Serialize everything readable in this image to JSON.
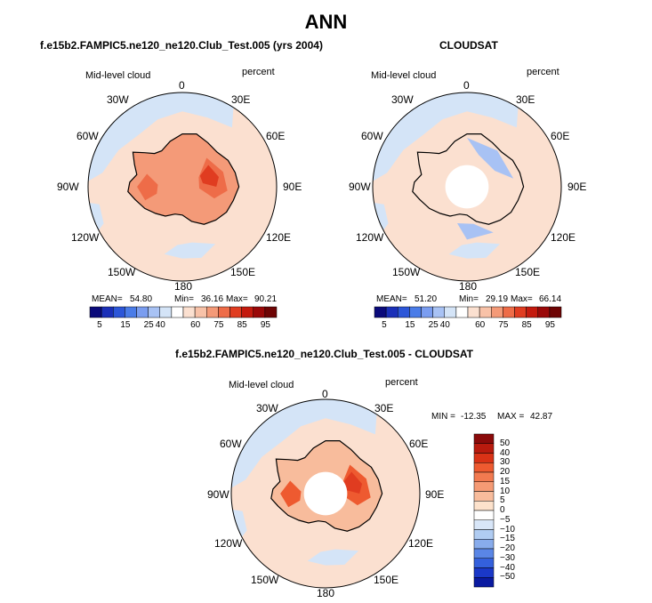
{
  "page": {
    "title": "ANN",
    "panel_a_title": "f.e15b2.FAMPIC5.ne120_ne120.Club_Test.005 (yrs 2004)",
    "panel_b_title": "CLOUDSAT",
    "panel_c_title": "f.e15b2.FAMPIC5.ne120_ne120.Club_Test.005 - CLOUDSAT"
  },
  "chart_data": [
    {
      "type": "heatmap",
      "projection": "south-polar-stereographic",
      "title": "f.e15b2.FAMPIC5.ne120_ne120.Club_Test.005 (yrs 2004)",
      "field_label": "Mid-level cloud",
      "units": "percent",
      "longitude_labels": [
        "0",
        "30E",
        "60E",
        "90E",
        "120E",
        "150E",
        "180",
        "150W",
        "120W",
        "90W",
        "60W",
        "30W"
      ],
      "stats": {
        "mean_label": "MEAN=",
        "mean": "54.80",
        "min_label": "Min=",
        "min": "36.16",
        "max_label": "Max=",
        "max": "90.21"
      },
      "colorbar_levels": [
        "5",
        "15",
        "25",
        "40",
        "60",
        "75",
        "85",
        "95"
      ],
      "colorbar_colors": [
        "#0a0a7a",
        "#1a2fb8",
        "#2c56d8",
        "#4a7ce8",
        "#7a9df0",
        "#a8c2f4",
        "#d4e4f7",
        "#ffffff",
        "#fbe0d0",
        "#f8c2a8",
        "#f49a78",
        "#ee6c48",
        "#e03c20",
        "#c41a0e",
        "#9a0808",
        "#6e0404"
      ],
      "domain_colors": {
        "ocean": "#fbe0d0",
        "cloud_band": "#d4e4f7",
        "continent_high": "#ee6c48"
      },
      "legend_position": "bottom"
    },
    {
      "type": "heatmap",
      "projection": "south-polar-stereographic",
      "title": "CLOUDSAT",
      "field_label": "Mid-level cloud",
      "units": "percent",
      "longitude_labels": [
        "0",
        "30E",
        "60E",
        "90E",
        "120E",
        "150E",
        "180",
        "150W",
        "120W",
        "90W",
        "60W",
        "30W"
      ],
      "stats": {
        "mean_label": "MEAN=",
        "mean": "51.20",
        "min_label": "Min=",
        "min": "29.19",
        "max_label": "Max=",
        "max": "66.14"
      },
      "colorbar_levels": [
        "5",
        "15",
        "25",
        "40",
        "60",
        "75",
        "85",
        "95"
      ],
      "colorbar_colors": [
        "#0a0a7a",
        "#1a2fb8",
        "#2c56d8",
        "#4a7ce8",
        "#7a9df0",
        "#a8c2f4",
        "#d4e4f7",
        "#ffffff",
        "#fbe0d0",
        "#f8c2a8",
        "#f49a78",
        "#ee6c48",
        "#e03c20",
        "#c41a0e",
        "#9a0808",
        "#6e0404"
      ],
      "domain_colors": {
        "ocean": "#fbe0d0",
        "cloud_band": "#d4e4f7",
        "missing": "#ffffff"
      },
      "legend_position": "bottom"
    },
    {
      "type": "heatmap",
      "projection": "south-polar-stereographic",
      "title": "f.e15b2.FAMPIC5.ne120_ne120.Club_Test.005 - CLOUDSAT",
      "field_label": "Mid-level cloud",
      "units": "percent",
      "longitude_labels": [
        "0",
        "30E",
        "60E",
        "90E",
        "120E",
        "150E",
        "180",
        "150W",
        "120W",
        "90W",
        "60W",
        "30W"
      ],
      "stats": {
        "min_label": "MIN =",
        "min": "-12.35",
        "max_label": "MAX =",
        "max": "42.87"
      },
      "colorbar_levels": [
        "50",
        "40",
        "30",
        "20",
        "15",
        "10",
        "5",
        "0",
        "−5",
        "−10",
        "−15",
        "−20",
        "−30",
        "−40",
        "−50"
      ],
      "colorbar_colors": [
        "#8a0a0a",
        "#b81a0e",
        "#d93216",
        "#ee5a30",
        "#f27a50",
        "#f59a74",
        "#f8bc9c",
        "#fde2cc",
        "#ffffff",
        "#d8e6f8",
        "#b0ccf2",
        "#88acec",
        "#5a86e6",
        "#3460dc",
        "#1a38c8",
        "#0a1aa0"
      ],
      "domain_colors": {
        "ocean": "#fbe0d0",
        "cloud_band": "#d4e4f7",
        "continent_high": "#e03c20",
        "missing": "#ffffff"
      },
      "legend_position": "right"
    }
  ]
}
